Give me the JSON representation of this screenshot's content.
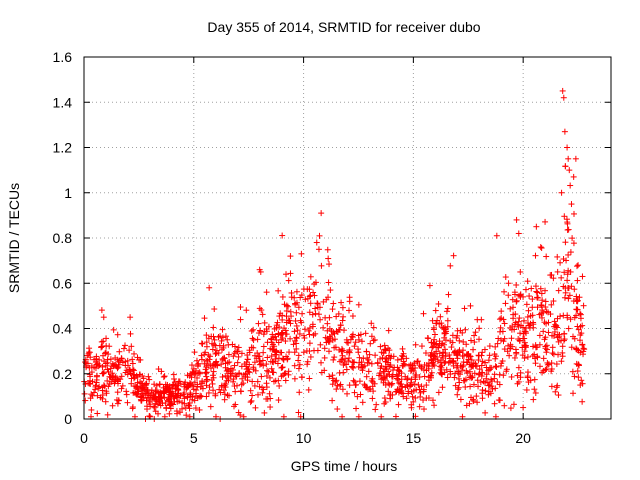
{
  "chart_data": {
    "type": "scatter",
    "title": "Day 355 of 2014, SRMTID for receiver dubo",
    "xlabel": "GPS time / hours",
    "ylabel": "SRMTID / TECUs",
    "xlim": [
      0,
      24
    ],
    "ylim": [
      0,
      1.6
    ],
    "x_ticks": [
      "0",
      "5",
      "10",
      "15",
      "20"
    ],
    "x_tick_values": [
      0,
      5,
      10,
      15,
      20
    ],
    "y_ticks": [
      "0",
      "0.2",
      "0.4",
      "0.6",
      "0.8",
      "1",
      "1.2",
      "1.4",
      "1.6"
    ],
    "y_tick_values": [
      0,
      0.2,
      0.4,
      0.6,
      0.8,
      1.0,
      1.2,
      1.4,
      1.6
    ],
    "grid": true,
    "marker": "plus",
    "series_color": "#ff0000",
    "trend_points": [
      [
        0.0,
        0.22
      ],
      [
        0.5,
        0.17
      ],
      [
        1.0,
        0.22
      ],
      [
        1.5,
        0.18
      ],
      [
        2.0,
        0.2
      ],
      [
        2.5,
        0.16
      ],
      [
        3.0,
        0.09
      ],
      [
        3.5,
        0.1
      ],
      [
        4.0,
        0.11
      ],
      [
        4.5,
        0.1
      ],
      [
        5.0,
        0.15
      ],
      [
        5.5,
        0.22
      ],
      [
        6.0,
        0.25
      ],
      [
        6.5,
        0.23
      ],
      [
        7.0,
        0.22
      ],
      [
        7.5,
        0.24
      ],
      [
        8.0,
        0.27
      ],
      [
        8.5,
        0.26
      ],
      [
        9.0,
        0.3
      ],
      [
        9.5,
        0.4
      ],
      [
        10.0,
        0.35
      ],
      [
        10.5,
        0.45
      ],
      [
        11.0,
        0.42
      ],
      [
        11.5,
        0.3
      ],
      [
        12.0,
        0.3
      ],
      [
        12.5,
        0.22
      ],
      [
        13.0,
        0.2
      ],
      [
        13.5,
        0.22
      ],
      [
        14.0,
        0.2
      ],
      [
        14.5,
        0.18
      ],
      [
        15.0,
        0.17
      ],
      [
        15.5,
        0.2
      ],
      [
        16.0,
        0.3
      ],
      [
        16.5,
        0.32
      ],
      [
        17.0,
        0.26
      ],
      [
        17.5,
        0.22
      ],
      [
        18.0,
        0.22
      ],
      [
        18.5,
        0.18
      ],
      [
        19.0,
        0.3
      ],
      [
        19.5,
        0.38
      ],
      [
        20.0,
        0.35
      ],
      [
        20.5,
        0.38
      ],
      [
        21.0,
        0.42
      ],
      [
        21.5,
        0.35
      ],
      [
        22.0,
        0.6
      ],
      [
        22.5,
        0.38
      ],
      [
        22.8,
        0.35
      ]
    ],
    "outliers": [
      [
        21.8,
        1.45
      ],
      [
        21.85,
        1.42
      ],
      [
        21.9,
        1.27
      ],
      [
        22.0,
        1.2
      ],
      [
        22.05,
        1.15
      ],
      [
        22.1,
        1.1
      ],
      [
        22.3,
        1.07
      ],
      [
        22.4,
        1.15
      ],
      [
        21.75,
        1.0
      ],
      [
        22.2,
        0.95
      ],
      [
        10.8,
        0.91
      ],
      [
        10.6,
        0.78
      ],
      [
        10.7,
        0.75
      ],
      [
        9.9,
        0.73
      ],
      [
        9.4,
        0.72
      ],
      [
        19.7,
        0.88
      ],
      [
        19.8,
        0.82
      ],
      [
        18.8,
        0.81
      ],
      [
        20.6,
        0.85
      ],
      [
        20.8,
        0.76
      ],
      [
        8.0,
        0.66
      ],
      [
        8.05,
        0.65
      ],
      [
        9.2,
        0.64
      ],
      [
        5.7,
        0.58
      ],
      [
        16.6,
        0.55
      ],
      [
        17.6,
        0.5
      ],
      [
        12.1,
        0.52
      ],
      [
        22.5,
        0.68
      ],
      [
        22.7,
        0.63
      ],
      [
        22.6,
        0.15
      ],
      [
        6.2,
        0.0
      ],
      [
        2.8,
        0.0
      ],
      [
        3.2,
        0.0
      ],
      [
        0.9,
        0.45
      ],
      [
        2.1,
        0.45
      ]
    ],
    "n_points": 1800,
    "random_seed": 355
  }
}
